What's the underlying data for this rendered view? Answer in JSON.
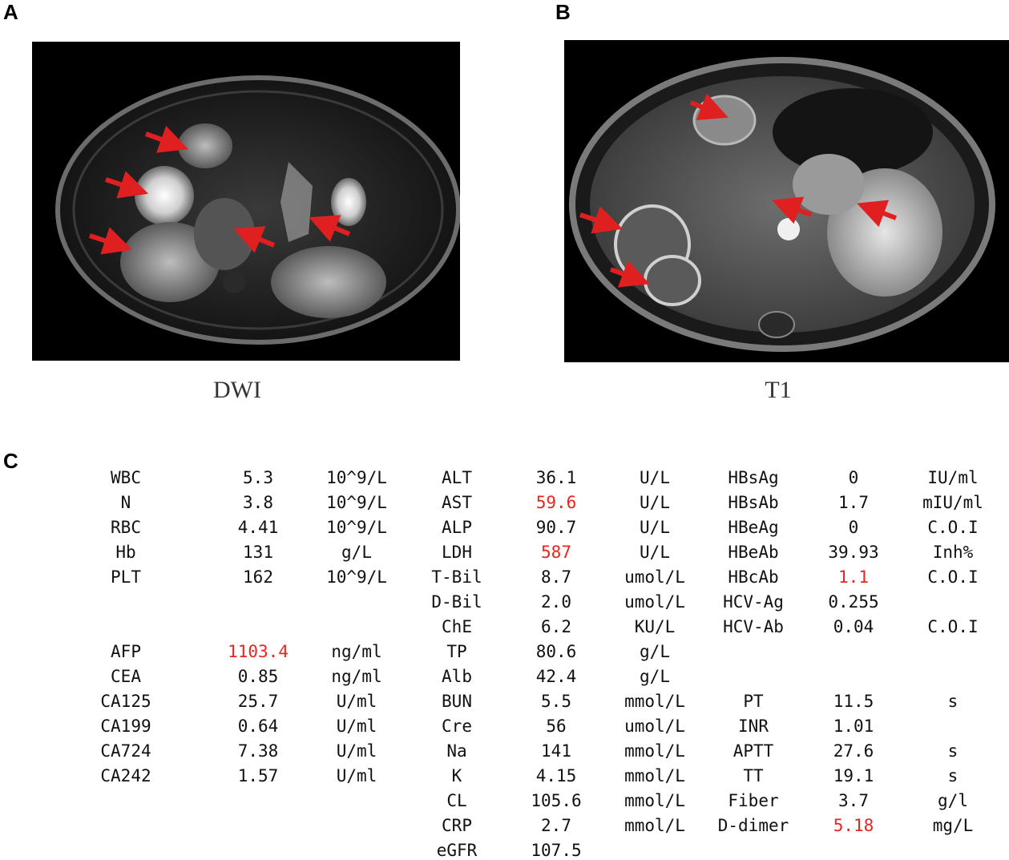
{
  "panels": {
    "a": {
      "letter": "A",
      "caption": "DWI"
    },
    "b": {
      "letter": "B",
      "caption": "T1"
    },
    "c": {
      "letter": "C"
    }
  },
  "lab_table": {
    "rows": [
      [
        "WBC",
        "5.3",
        "10^9/L",
        "ALT",
        "36.1",
        "U/L",
        "HBsAg",
        "0",
        "IU/ml"
      ],
      [
        "N",
        "3.8",
        "10^9/L",
        "AST",
        "59.6",
        "U/L",
        "HBsAb",
        "1.7",
        "mIU/ml"
      ],
      [
        "RBC",
        "4.41",
        "10^9/L",
        "ALP",
        "90.7",
        "U/L",
        "HBeAg",
        "0",
        "C.O.I"
      ],
      [
        "Hb",
        "131",
        "g/L",
        "LDH",
        "587",
        "U/L",
        "HBeAb",
        "39.93",
        "Inh%"
      ],
      [
        "PLT",
        "162",
        "10^9/L",
        "T-Bil",
        "8.7",
        "umol/L",
        "HBcAb",
        "1.1",
        "C.O.I"
      ],
      [
        "",
        "",
        "",
        "D-Bil",
        "2.0",
        "umol/L",
        "HCV-Ag",
        "0.255",
        ""
      ],
      [
        "",
        "",
        "",
        "ChE",
        "6.2",
        "KU/L",
        "HCV-Ab",
        "0.04",
        "C.O.I"
      ],
      [
        "AFP",
        "1103.4",
        "ng/ml",
        "TP",
        "80.6",
        "g/L",
        "",
        "",
        ""
      ],
      [
        "CEA",
        "0.85",
        "ng/ml",
        "Alb",
        "42.4",
        "g/L",
        "",
        "",
        ""
      ],
      [
        "CA125",
        "25.7",
        "U/ml",
        "BUN",
        "5.5",
        "mmol/L",
        "PT",
        "11.5",
        "s"
      ],
      [
        "CA199",
        "0.64",
        "U/ml",
        "Cre",
        "56",
        "umol/L",
        "INR",
        "1.01",
        ""
      ],
      [
        "CA724",
        "7.38",
        "U/ml",
        "Na",
        "141",
        "mmol/L",
        "APTT",
        "27.6",
        "s"
      ],
      [
        "CA242",
        "1.57",
        "U/ml",
        "K",
        "4.15",
        "mmol/L",
        "TT",
        "19.1",
        "s"
      ],
      [
        "",
        "",
        "",
        "CL",
        "105.6",
        "mmol/L",
        "Fiber",
        "3.7",
        "g/l"
      ],
      [
        "",
        "",
        "",
        "CRP",
        "2.7",
        "mmol/L",
        "D-dimer",
        "5.18",
        "mg/L"
      ],
      [
        "",
        "",
        "",
        "eGFR",
        "107.5",
        "",
        "",
        "",
        ""
      ]
    ],
    "highlighted": [
      [
        1,
        4
      ],
      [
        3,
        4
      ],
      [
        4,
        7
      ],
      [
        7,
        1
      ],
      [
        14,
        7
      ]
    ],
    "highlight_color": "#e8251f"
  }
}
